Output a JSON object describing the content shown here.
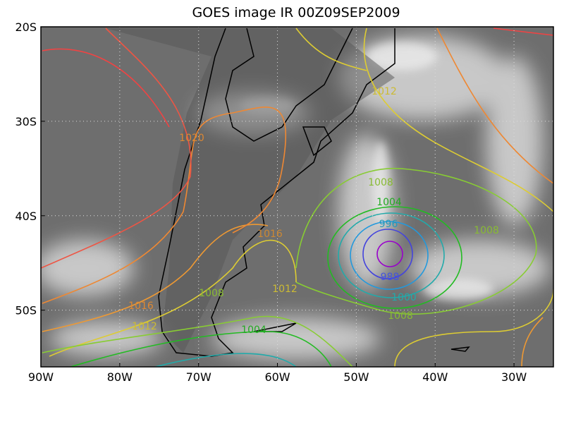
{
  "map": {
    "title": "GOES image IR 00Z09SEP2009",
    "lon_range": [
      -90,
      -25
    ],
    "lat_range": [
      -20,
      -56
    ],
    "lon_ticks": [
      {
        "value": -90,
        "label": "90W"
      },
      {
        "value": -80,
        "label": "80W"
      },
      {
        "value": -70,
        "label": "70W"
      },
      {
        "value": -60,
        "label": "60W"
      },
      {
        "value": -50,
        "label": "50W"
      },
      {
        "value": -40,
        "label": "40W"
      },
      {
        "value": -30,
        "label": "30W"
      }
    ],
    "lat_ticks": [
      {
        "value": -20,
        "label": "20S"
      },
      {
        "value": -30,
        "label": "30S"
      },
      {
        "value": -40,
        "label": "40S"
      },
      {
        "value": -50,
        "label": "50S"
      }
    ],
    "contour_labels": [
      1020,
      1016,
      1012,
      1008,
      1016,
      1012,
      1004,
      1012,
      1008,
      1004,
      996,
      988,
      1000,
      1008,
      1008
    ]
  }
}
